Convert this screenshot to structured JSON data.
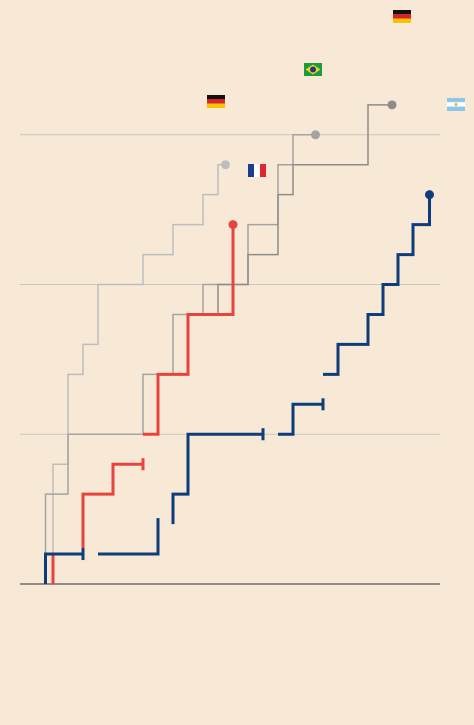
{
  "chart_data": {
    "type": "line",
    "step": true,
    "marker": "end",
    "xlim": [
      -1.2,
      26.8
    ],
    "ylim": [
      0,
      19.5
    ],
    "yticks": [
      0,
      5,
      10,
      15
    ],
    "grid": true,
    "series": [
      {
        "color": "#bdbdbd",
        "width": 1.5,
        "x": [
          1,
          1,
          2,
          2,
          3,
          3,
          4,
          4,
          7,
          7,
          9,
          9,
          11,
          11,
          12,
          12,
          12.5
        ],
        "values": [
          1,
          4,
          4,
          7,
          7,
          8,
          8,
          10,
          10,
          11,
          11,
          12,
          12,
          13,
          13,
          14,
          14
        ]
      },
      {
        "color": "#a3a3a3",
        "width": 1.5,
        "x": [
          0.5,
          0.5,
          2,
          2,
          7,
          7,
          9,
          9,
          11,
          11,
          14,
          14,
          16,
          16,
          17,
          17,
          18.5
        ],
        "values": [
          1,
          3,
          3,
          5,
          5,
          7,
          7,
          9,
          9,
          10,
          10,
          12,
          12,
          14,
          14,
          15,
          15
        ]
      },
      {
        "color": "#8c8c8c",
        "width": 1.5,
        "x": [
          8,
          8,
          10,
          10,
          12,
          12,
          14,
          14,
          16,
          16,
          17,
          17,
          22,
          22,
          23.6
        ],
        "values": [
          5,
          7,
          7,
          9,
          9,
          10,
          10,
          11,
          11,
          13,
          13,
          14,
          14,
          16,
          16
        ]
      },
      {
        "color": "#e8443f",
        "width": 3,
        "x": [
          1,
          1,
          3,
          3,
          5,
          5,
          7,
          null,
          7,
          8,
          8,
          10,
          10,
          13,
          13
        ],
        "values": [
          0,
          1,
          1,
          3,
          3,
          4,
          4,
          null,
          5,
          5,
          7,
          7,
          9,
          9,
          12
        ]
      },
      {
        "color": "#0d3d7a",
        "width": 3,
        "x": [
          0.5,
          0.5,
          3,
          null,
          4,
          8,
          8,
          null,
          9,
          9,
          10,
          10,
          15,
          null,
          16,
          17,
          17,
          19,
          null,
          19,
          20,
          20,
          22,
          22,
          23,
          23,
          24,
          24,
          25,
          25,
          26.1,
          26.1
        ],
        "values": [
          0,
          1,
          1,
          null,
          1,
          1,
          2,
          null,
          2,
          3,
          3,
          5,
          5,
          null,
          5,
          5,
          6,
          6,
          null,
          7,
          7,
          8,
          8,
          9,
          9,
          10,
          10,
          11,
          11,
          12,
          12,
          13
        ]
      }
    ]
  }
}
